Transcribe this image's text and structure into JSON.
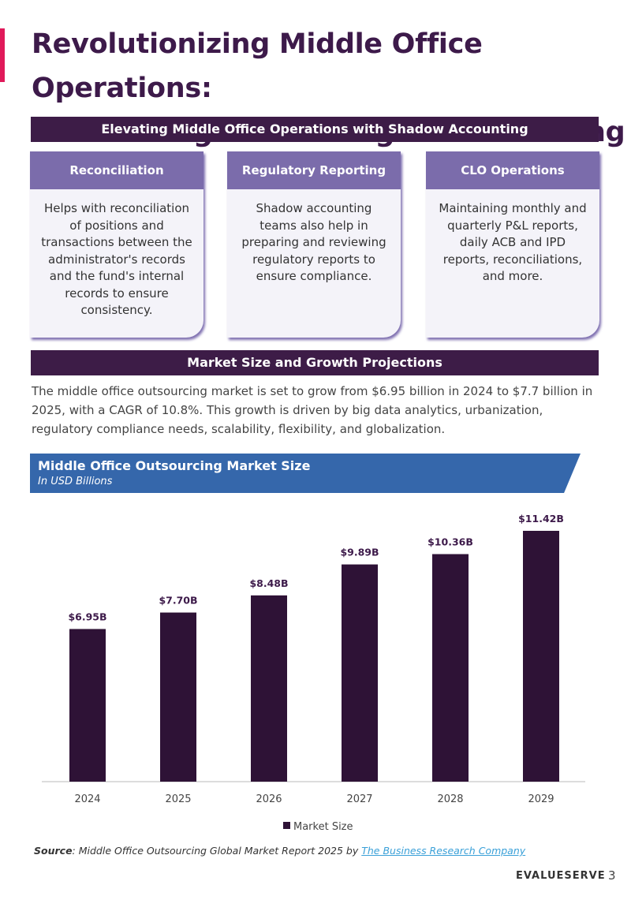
{
  "header": {
    "title_lines": [
      "Revolutionizing Middle Office Operations:",
      "The Strategic Advantage of Offshoring"
    ]
  },
  "section1": {
    "heading": "Elevating Middle Office Operations with Shadow Accounting",
    "cards": [
      {
        "title": "Reconciliation",
        "body": "Helps with reconciliation of positions and transactions between the administrator's records and the fund's internal records to ensure consistency."
      },
      {
        "title": "Regulatory Reporting",
        "body": "Shadow accounting teams also help in preparing and reviewing regulatory reports to ensure compliance."
      },
      {
        "title": "CLO Operations",
        "body": "Maintaining monthly and quarterly P&L reports, daily ACB and IPD reports, reconciliations, and more."
      }
    ]
  },
  "section2": {
    "heading": "Market Size and Growth Projections",
    "paragraph": "The middle office outsourcing market is set to grow from $6.95 billion in 2024 to $7.7 billion in 2025, with a CAGR of 10.8%. This growth is driven by big data analytics, urbanization, regulatory compliance needs, scalability, flexibility, and globalization."
  },
  "chart_data": {
    "type": "bar",
    "title": "Middle Office Outsourcing Market Size",
    "subtitle": "In USD Billions",
    "categories": [
      "2024",
      "2025",
      "2026",
      "2027",
      "2028",
      "2029"
    ],
    "series": [
      {
        "name": "Market Size",
        "color": "#2e1236",
        "values": [
          6.95,
          7.7,
          8.48,
          9.89,
          10.36,
          11.42
        ],
        "value_labels": [
          "$6.95B",
          "$7.70B",
          "$8.48B",
          "$9.89B",
          "$10.36B",
          "$11.42B"
        ]
      }
    ],
    "legend": "bottom"
  },
  "source": {
    "label": "Source",
    "text": ": Middle Office Outsourcing Global Market Report 2025 by ",
    "link": "The Business Research Company"
  },
  "footer": {
    "brand": "EVALUESERVE",
    "page": "3"
  }
}
